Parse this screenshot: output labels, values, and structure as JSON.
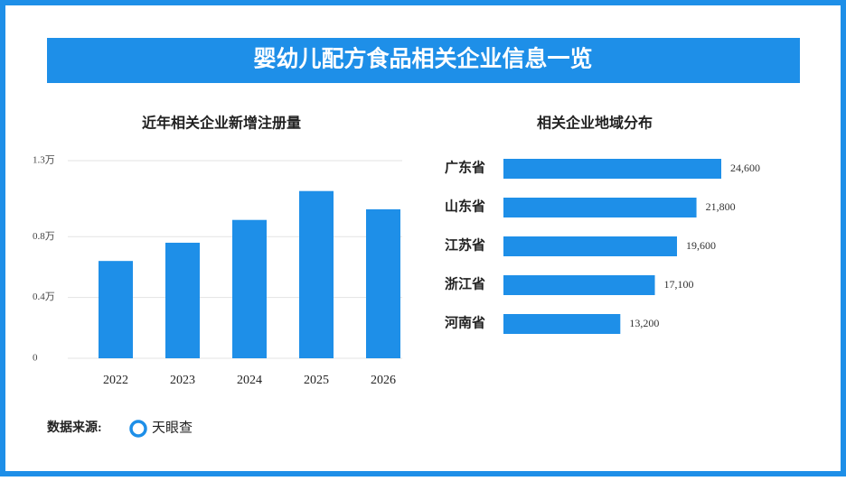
{
  "title": "婴幼儿配方食品相关企业信息一览",
  "chart_data": [
    {
      "type": "bar",
      "title": "近年相关企业新增注册量",
      "categories": [
        "2022",
        "2023",
        "2024",
        "2025",
        "2026"
      ],
      "values": [
        0.64,
        0.76,
        0.91,
        1.1,
        0.98
      ],
      "color": "#1e8fe8",
      "ylim": [
        0,
        1.3
      ],
      "yticks": [
        0,
        {
          "value": 0.4,
          "label": "0.4万"
        },
        {
          "value": 0.8,
          "label": "0.8万"
        },
        {
          "value": 1.3,
          "label": "1.3万"
        }
      ],
      "grid": true
    },
    {
      "type": "hbar",
      "title": "相关企业地域分布",
      "categories": [
        "广东省",
        "山东省",
        "江苏省",
        "浙江省",
        "河南省"
      ],
      "values": [
        24600,
        21800,
        19600,
        17100,
        13200
      ],
      "value_labels": [
        "24,600",
        "21,800",
        "19,600",
        "17,100",
        "13,200"
      ],
      "color": "#1e8fe8"
    }
  ],
  "source_label": "数据来源:",
  "source_name": "天眼查"
}
